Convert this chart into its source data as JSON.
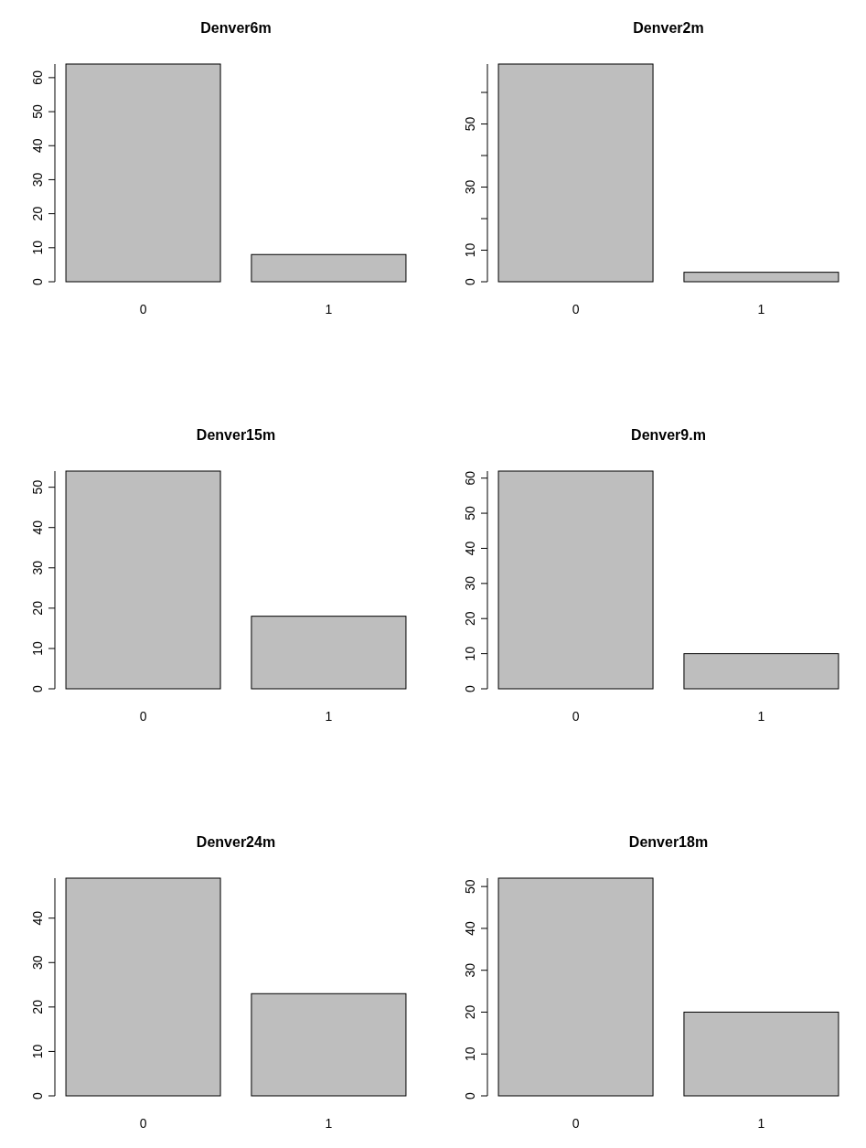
{
  "chart_data": [
    {
      "type": "bar",
      "title": "Denver6m",
      "categories": [
        "0",
        "1"
      ],
      "values": [
        64,
        8
      ],
      "color": "#bebebe",
      "ylim": [
        0,
        64
      ],
      "yticks": [
        0,
        10,
        20,
        30,
        40,
        50,
        60
      ]
    },
    {
      "type": "bar",
      "title": "Denver2m",
      "categories": [
        "0",
        "1"
      ],
      "values": [
        69,
        3
      ],
      "color": "#bebebe",
      "ylim": [
        0,
        69
      ],
      "yticks": [
        0,
        10,
        {
          "value": 20,
          "label": null
        },
        30,
        {
          "value": 40,
          "label": null
        },
        50,
        {
          "value": 60,
          "label": null
        }
      ]
    },
    {
      "type": "bar",
      "title": "Denver15m",
      "categories": [
        "0",
        "1"
      ],
      "values": [
        54,
        18
      ],
      "color": "#bebebe",
      "ylim": [
        0,
        54
      ],
      "yticks": [
        0,
        10,
        20,
        30,
        40,
        50
      ]
    },
    {
      "type": "bar",
      "title": "Denver9.m",
      "categories": [
        "0",
        "1"
      ],
      "values": [
        62,
        10
      ],
      "color": "#bebebe",
      "ylim": [
        0,
        62
      ],
      "yticks": [
        0,
        10,
        20,
        30,
        40,
        50,
        60
      ]
    },
    {
      "type": "bar",
      "title": "Denver24m",
      "categories": [
        "0",
        "1"
      ],
      "values": [
        49,
        23
      ],
      "color": "#bebebe",
      "ylim": [
        0,
        49
      ],
      "yticks": [
        0,
        10,
        20,
        30,
        40
      ]
    },
    {
      "type": "bar",
      "title": "Denver18m",
      "categories": [
        "0",
        "1"
      ],
      "values": [
        52,
        20
      ],
      "color": "#bebebe",
      "ylim": [
        0,
        52
      ],
      "yticks": [
        0,
        10,
        20,
        30,
        40,
        50
      ]
    }
  ]
}
